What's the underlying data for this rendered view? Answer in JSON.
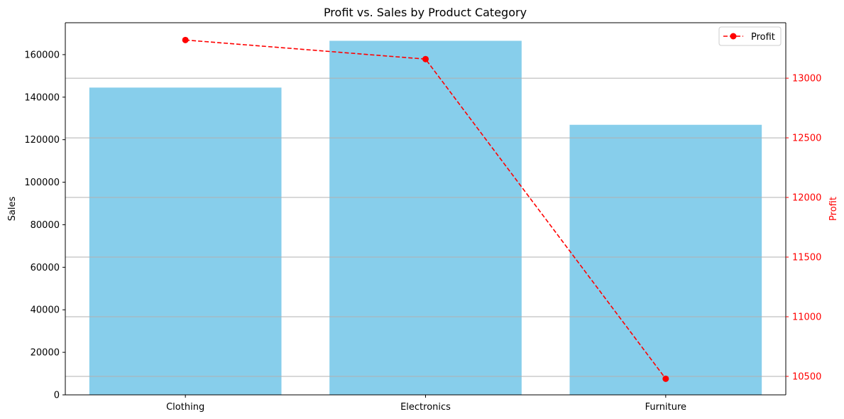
{
  "chart_data": {
    "type": "bar",
    "title": "Profit vs. Sales by Product Category",
    "categories": [
      "Clothing",
      "Electronics",
      "Furniture"
    ],
    "bar_series": {
      "name": "Sales",
      "values": [
        144500,
        166500,
        127000
      ],
      "color": "#87CEEB"
    },
    "line_series": {
      "name": "Profit",
      "values": [
        13320,
        13160,
        10480
      ],
      "color": "#ff0000",
      "line_style": "dashed",
      "marker": "circle"
    },
    "ylabel": "Sales",
    "ylabel_right": "Profit",
    "ylim": [
      0,
      175000
    ],
    "ylim_right": [
      10345,
      13465
    ],
    "yticks": [
      0,
      20000,
      40000,
      60000,
      80000,
      100000,
      120000,
      140000,
      160000
    ],
    "yticks_right": [
      10500,
      11000,
      11500,
      12000,
      12500,
      13000
    ],
    "grid": "right-axis horizontal",
    "legend_position": "top-right",
    "right_axis_color": "#ff0000"
  }
}
